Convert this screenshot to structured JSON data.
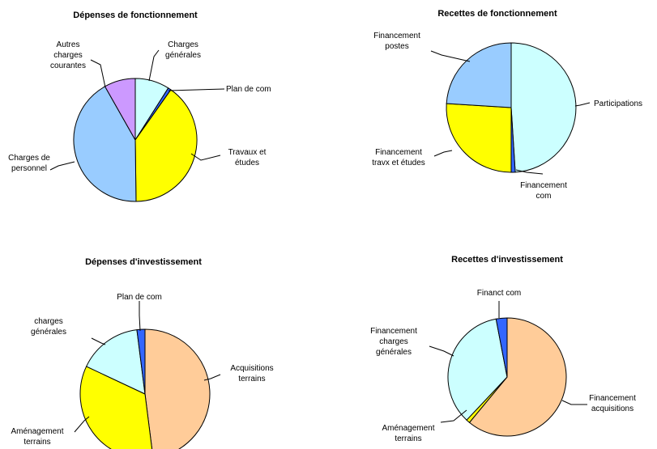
{
  "chart_data": [
    {
      "type": "pie",
      "title": "Dépenses de fonctionnement",
      "slices": [
        {
          "label": "Charges générales",
          "value": 9.0,
          "color": "#ccffff"
        },
        {
          "label": "Plan de com",
          "value": 0.8,
          "color": "#3366ff"
        },
        {
          "label": "Travaux et études",
          "value": 40.0,
          "color": "#ffff00"
        },
        {
          "label": "Charges de personnel",
          "value": 42.0,
          "color": "#99ccff"
        },
        {
          "label": "Autres charges courantes",
          "value": 8.2,
          "color": "#cc99ff"
        }
      ]
    },
    {
      "type": "pie",
      "title": "Recettes de fonctionnement",
      "slices": [
        {
          "label": "Participations",
          "value": 49.0,
          "color": "#ccffff"
        },
        {
          "label": "Financement com",
          "value": 1.0,
          "color": "#3366ff"
        },
        {
          "label": "Financement travx et études",
          "value": 26.0,
          "color": "#ffff00"
        },
        {
          "label": "Financement postes",
          "value": 24.0,
          "color": "#99ccff"
        }
      ]
    },
    {
      "type": "pie",
      "title": "Dépenses d'investissement",
      "slices": [
        {
          "label": "Acquisitions terrains",
          "value": 48.0,
          "color": "#ffcc99"
        },
        {
          "label": "Aménagement terrains",
          "value": 34.0,
          "color": "#ffff00"
        },
        {
          "label": "charges générales",
          "value": 16.0,
          "color": "#ccffff"
        },
        {
          "label": "Plan de com",
          "value": 2.0,
          "color": "#3366ff"
        }
      ]
    },
    {
      "type": "pie",
      "title": "Recettes d'investissement",
      "slices": [
        {
          "label": "Financement acquisitions",
          "value": 61.0,
          "color": "#ffcc99"
        },
        {
          "label": "Aménagement terrains",
          "value": 1.0,
          "color": "#ffff00"
        },
        {
          "label": "Financement charges générales",
          "value": 35.0,
          "color": "#ccffff"
        },
        {
          "label": "Financt com",
          "value": 3.0,
          "color": "#3366ff"
        }
      ]
    }
  ]
}
